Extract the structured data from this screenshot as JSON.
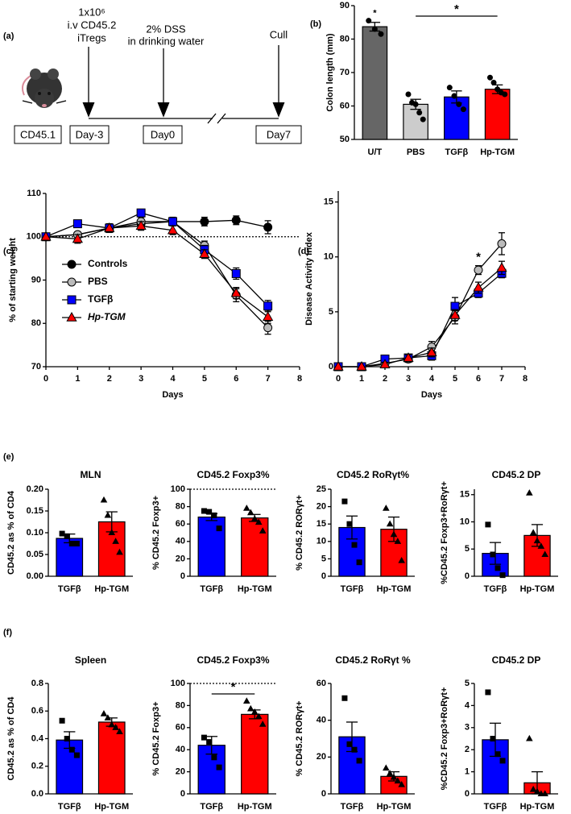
{
  "panel_labels": [
    "(a)",
    "(b)",
    "(c)",
    "(d)",
    "(e)",
    "(f)"
  ],
  "diagram": {
    "annotations": [
      [
        "1x10⁶",
        "i.v CD45.2",
        "iTregs"
      ],
      [
        "2% DSS",
        "in drinking water"
      ],
      [
        "Cull"
      ]
    ],
    "boxes": [
      "CD45.1",
      "Day-3",
      "Day0",
      "Day7"
    ]
  },
  "chart_data": [
    {
      "type": "bar",
      "ylabel": "Colon length (mm)",
      "categories": [
        "U/T",
        "PBS",
        "TGFβ",
        "Hp-TGM"
      ],
      "values": [
        83.7,
        60.5,
        62.7,
        65.0
      ],
      "errors": [
        1.3,
        1.5,
        1.8,
        1.3
      ],
      "colors": [
        "#666666",
        "#cccccc",
        "#0000ff",
        "#ff0000"
      ],
      "points": [
        [
          85.5,
          83,
          81.5
        ],
        [
          63.5,
          61,
          60.5,
          58,
          56
        ],
        [
          65.5,
          63,
          60.5,
          59
        ],
        [
          68.5,
          67,
          65,
          64,
          63.5
        ]
      ],
      "point_markers": [
        "circle",
        "circle",
        "circle",
        "circle"
      ],
      "ylim": [
        50,
        90
      ],
      "yticks": [
        50,
        60,
        70,
        80,
        90
      ],
      "significance": [
        {
          "text": "*",
          "between": [
            "U/T"
          ]
        },
        {
          "text": "*",
          "between": [
            "PBS",
            "Hp-TGM"
          ]
        }
      ]
    },
    {
      "type": "line",
      "xlabel": "Days",
      "ylabel": "% of starting weight",
      "x": [
        0,
        1,
        2,
        3,
        4,
        5,
        6,
        7
      ],
      "xlim": [
        0,
        8
      ],
      "xticks": [
        0,
        1,
        2,
        3,
        4,
        5,
        6,
        7,
        8
      ],
      "ylim": [
        70,
        110
      ],
      "yticks": [
        70,
        80,
        90,
        100,
        110
      ],
      "reference_line": 100,
      "line_color": "#000000",
      "legend": "center-left",
      "series": [
        {
          "name": "Controls",
          "color": "#000000",
          "marker": "circle",
          "values": [
            100,
            100.5,
            102,
            103,
            103.5,
            103.5,
            103.8,
            102.2
          ],
          "errors": [
            0,
            0.5,
            1,
            1,
            0.8,
            1,
            1,
            1.5
          ]
        },
        {
          "name": "PBS",
          "color": "#bbbbbb",
          "marker": "circle",
          "values": [
            100,
            100.5,
            102,
            103.5,
            103.5,
            98,
            86.5,
            79
          ],
          "errors": [
            0,
            0.5,
            1,
            1,
            1,
            1,
            1.5,
            1.5
          ]
        },
        {
          "name": "TGFβ",
          "color": "#0000ff",
          "marker": "square",
          "values": [
            100,
            103,
            102,
            105.5,
            103.5,
            97,
            91.5,
            84
          ],
          "errors": [
            0,
            0.5,
            0.8,
            0.8,
            0.8,
            1,
            1.3,
            1.3
          ]
        },
        {
          "name": "Hp-TGM",
          "color": "#ff0000",
          "marker": "triangle",
          "values": [
            100,
            99.5,
            102,
            102.5,
            101.5,
            96,
            87,
            81.5
          ],
          "errors": [
            0,
            1,
            1,
            1,
            1,
            1,
            1.3,
            1.5
          ]
        }
      ]
    },
    {
      "type": "line",
      "xlabel": "Days",
      "ylabel": "Disease Activity Index",
      "x": [
        0,
        1,
        2,
        3,
        4,
        5,
        6,
        7
      ],
      "xlim": [
        0,
        8
      ],
      "xticks": [
        0,
        1,
        2,
        3,
        4,
        5,
        6,
        7,
        8
      ],
      "ylim": [
        0,
        16
      ],
      "yticks": [
        0,
        5,
        10,
        15
      ],
      "line_color": "#000000",
      "series": [
        {
          "color": "#bbbbbb",
          "marker": "circle",
          "values": [
            0,
            0,
            0.3,
            0.7,
            1.8,
            4.5,
            8.8,
            11.2
          ],
          "errors": [
            0,
            0,
            0.2,
            0.3,
            0.5,
            0.6,
            0.4,
            1
          ]
        },
        {
          "color": "#0000ff",
          "marker": "square",
          "values": [
            0,
            0,
            0.7,
            0.8,
            1.0,
            5.5,
            6.7,
            8.5
          ],
          "errors": [
            0,
            0,
            0.2,
            0.3,
            0.4,
            0.8,
            0.4,
            0.4
          ]
        },
        {
          "color": "#ff0000",
          "marker": "triangle",
          "values": [
            0,
            0,
            0.2,
            0.8,
            1.3,
            4.7,
            7.2,
            9.0
          ],
          "errors": [
            0,
            0,
            0.2,
            0.3,
            0.4,
            0.5,
            0.5,
            0.6
          ]
        }
      ],
      "significance": [
        {
          "text": "*",
          "x": 6
        }
      ]
    },
    {
      "type": "bar",
      "title": "MLN",
      "ylabel": "CD45.2 as % of CD4",
      "categories": [
        "TGFβ",
        "Hp-TGM"
      ],
      "values": [
        0.087,
        0.125
      ],
      "errors": [
        0.01,
        0.023
      ],
      "colors": [
        "#0000ff",
        "#ff0000"
      ],
      "points": [
        [
          0.098,
          0.092,
          0.075,
          0.075
        ],
        [
          0.175,
          0.14,
          0.1,
          0.08,
          0.055
        ]
      ],
      "point_markers": [
        "square",
        "triangle"
      ],
      "ylim": [
        0,
        0.2
      ],
      "yticks": [
        {
          "value": 0,
          "label": "0.00"
        },
        0.05,
        {
          "value": 0.1,
          "label": "0.10"
        },
        0.15,
        {
          "value": 0.2,
          "label": "0.20"
        }
      ]
    },
    {
      "type": "bar",
      "title": "CD45.2 Foxp3%",
      "ylabel": "% CD45.2 Foxp3+",
      "categories": [
        "TGFβ",
        "Hp-TGM"
      ],
      "values": [
        68,
        67
      ],
      "errors": [
        4,
        4
      ],
      "colors": [
        "#0000ff",
        "#ff0000"
      ],
      "points": [
        [
          75,
          74,
          70,
          55
        ],
        [
          78,
          73,
          66,
          62,
          52
        ]
      ],
      "point_markers": [
        "square",
        "triangle"
      ],
      "ylim": [
        0,
        100
      ],
      "yticks": [
        0,
        20,
        40,
        60,
        80,
        100
      ],
      "reference_line": 100
    },
    {
      "type": "bar",
      "title": "CD45.2 RoRγt%",
      "ylabel": "% CD45.2 RORγt+",
      "categories": [
        "TGFβ",
        "Hp-TGM"
      ],
      "values": [
        14,
        13.5
      ],
      "errors": [
        3.3,
        3.5
      ],
      "colors": [
        "#0000ff",
        "#ff0000"
      ],
      "points": [
        [
          21.5,
          15,
          9,
          4
        ],
        [
          19.5,
          15,
          12,
          10,
          4.5
        ]
      ],
      "point_markers": [
        "square",
        "triangle"
      ],
      "ylim": [
        0,
        25
      ],
      "yticks": [
        0,
        5,
        10,
        15,
        20,
        25
      ]
    },
    {
      "type": "bar",
      "title": "CD45.2 DP",
      "ylabel": "%CD45.2 Foxp3+RoRγt+",
      "categories": [
        "TGFβ",
        "Hp-TGM"
      ],
      "values": [
        4.2,
        7.5
      ],
      "errors": [
        2,
        2
      ],
      "colors": [
        "#0000ff",
        "#ff0000"
      ],
      "points": [
        [
          9.5,
          4,
          1.5,
          0.2
        ],
        [
          15.3,
          8,
          6.5,
          5.5,
          4
        ]
      ],
      "point_markers": [
        "square",
        "triangle"
      ],
      "ylim": [
        0,
        16
      ],
      "yticks": [
        0,
        5,
        10,
        15
      ]
    },
    {
      "type": "bar",
      "title": "Spleen",
      "ylabel": "CD45.2 as % of CD4",
      "categories": [
        "TGFβ",
        "Hp-TGM"
      ],
      "values": [
        0.39,
        0.52
      ],
      "errors": [
        0.06,
        0.03
      ],
      "colors": [
        "#0000ff",
        "#ff0000"
      ],
      "points": [
        [
          0.53,
          0.4,
          0.32,
          0.28
        ],
        [
          0.58,
          0.55,
          0.5,
          0.48,
          0.45
        ]
      ],
      "point_markers": [
        "square",
        "triangle"
      ],
      "ylim": [
        0,
        0.8
      ],
      "yticks": [
        {
          "value": 0,
          "label": "0.0"
        },
        0.2,
        0.4,
        0.6,
        0.8
      ]
    },
    {
      "type": "bar",
      "title": "CD45.2 Foxp3%",
      "ylabel": "% CD45.2 Foxp3+",
      "categories": [
        "TGFβ",
        "Hp-TGM"
      ],
      "values": [
        44,
        72
      ],
      "errors": [
        8,
        4
      ],
      "colors": [
        "#0000ff",
        "#ff0000"
      ],
      "points": [
        [
          51,
          47,
          33,
          24
        ],
        [
          84,
          77,
          74,
          70,
          63
        ]
      ],
      "point_markers": [
        "square",
        "triangle"
      ],
      "ylim": [
        0,
        100
      ],
      "yticks": [
        0,
        20,
        40,
        60,
        80,
        100
      ],
      "reference_line": 100,
      "significance": [
        {
          "text": "*",
          "between": [
            "TGFβ",
            "Hp-TGM"
          ]
        }
      ]
    },
    {
      "type": "bar",
      "title": "CD45.2 RoRγt %",
      "ylabel": "% CD45.2 RORγt+",
      "categories": [
        "TGFβ",
        "Hp-TGM"
      ],
      "values": [
        31,
        9.5
      ],
      "errors": [
        8,
        2.5
      ],
      "colors": [
        "#0000ff",
        "#ff0000"
      ],
      "points": [
        [
          52,
          27,
          24,
          18
        ],
        [
          14,
          11,
          9,
          7,
          5
        ]
      ],
      "point_markers": [
        "square",
        "triangle"
      ],
      "ylim": [
        0,
        60
      ],
      "yticks": [
        0,
        20,
        40,
        60
      ]
    },
    {
      "type": "bar",
      "title": "CD45.2 DP",
      "ylabel": "%CD45.2 Foxp3+RoRγt+",
      "categories": [
        "TGFβ",
        "Hp-TGM"
      ],
      "values": [
        2.45,
        0.5
      ],
      "errors": [
        0.75,
        0.5
      ],
      "colors": [
        "#0000ff",
        "#ff0000"
      ],
      "points": [
        [
          4.6,
          2.5,
          1.8,
          1.5
        ],
        [
          2.5,
          0.2,
          0.1,
          0,
          0
        ]
      ],
      "point_markers": [
        "square",
        "triangle"
      ],
      "ylim": [
        0,
        5
      ],
      "yticks": [
        0,
        1,
        2,
        3,
        4,
        5
      ]
    }
  ]
}
